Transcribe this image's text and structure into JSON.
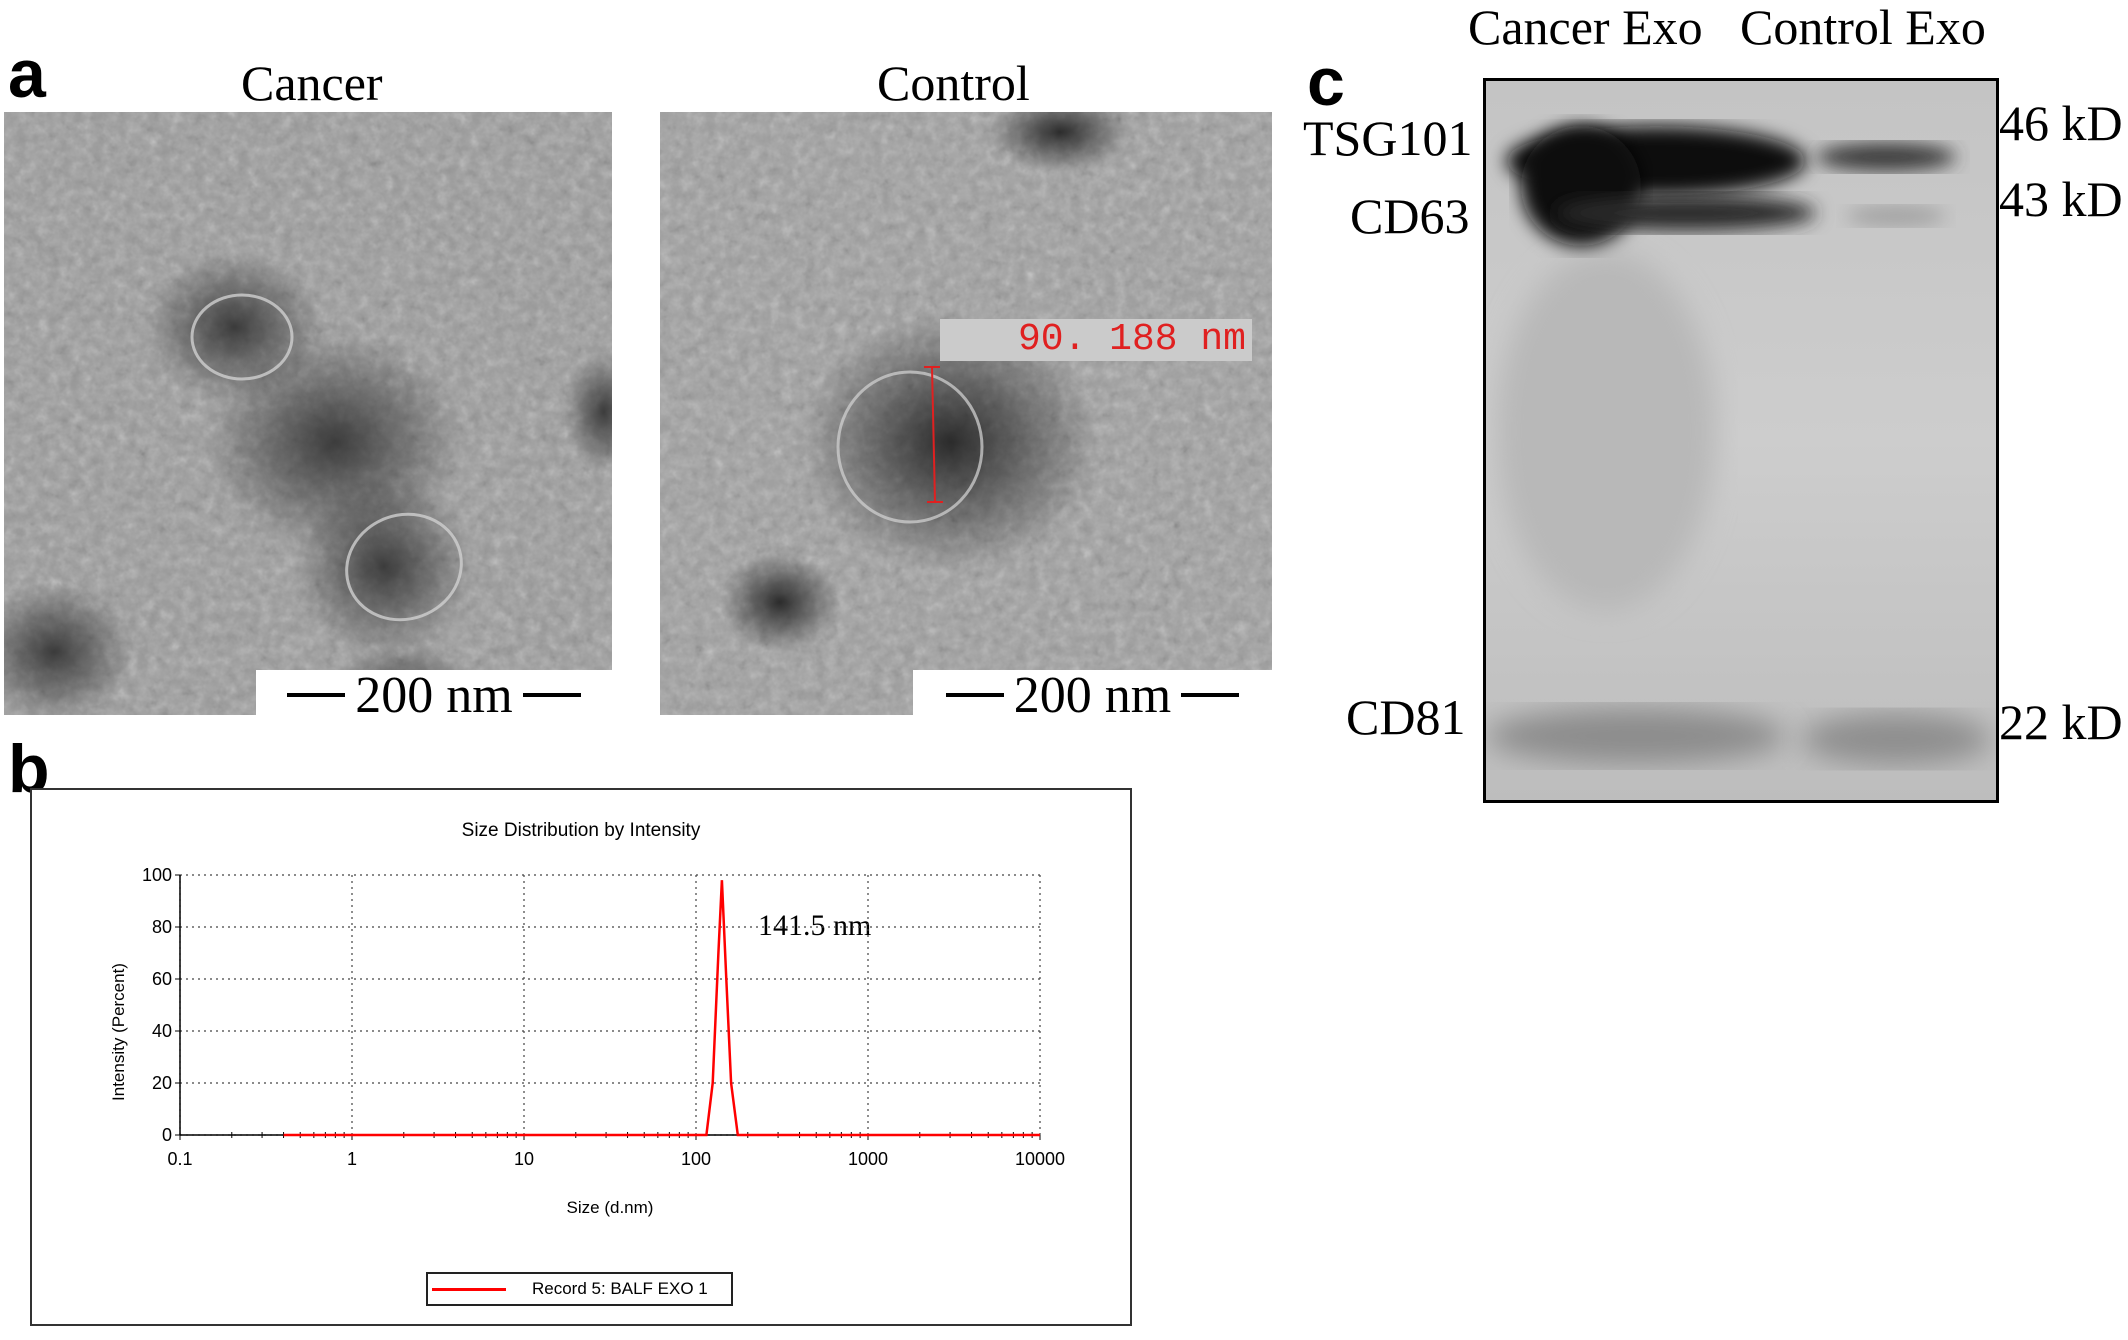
{
  "panel_a": {
    "letter": "a",
    "left": {
      "title": "Cancer",
      "scale_bar": "200 nm"
    },
    "right": {
      "title": "Control",
      "scale_bar": "200 nm",
      "measurement": "90. 188 nm"
    }
  },
  "panel_b": {
    "letter": "b",
    "chart_data": {
      "type": "line",
      "title": "Size Distribution by Intensity",
      "xlabel": "Size (d.nm)",
      "ylabel": "Intensity (Percent)",
      "x_scale": "log",
      "xlim": [
        0.1,
        10000
      ],
      "ylim": [
        0,
        100
      ],
      "x_ticks": [
        "0.1",
        "1",
        "10",
        "100",
        "1000",
        "10000"
      ],
      "y_ticks": [
        "0",
        "20",
        "40",
        "60",
        "80",
        "100"
      ],
      "grid": true,
      "legend_position": "bottom",
      "annotation": "141.5 nm",
      "series": [
        {
          "name": "Record 5: BALF EXO 1",
          "color": "#ff0000",
          "x": [
            0.4,
            100,
            115,
            125,
            135,
            141.5,
            150,
            160,
            175,
            200,
            10000
          ],
          "y": [
            0,
            0,
            0,
            20,
            70,
            98,
            60,
            20,
            0,
            0,
            0
          ]
        }
      ]
    }
  },
  "panel_c": {
    "letter": "c",
    "lanes": [
      "Cancer Exo",
      "Control Exo"
    ],
    "bands": [
      "TSG101",
      "CD63",
      "CD81"
    ],
    "markers": [
      "46 kD",
      "43 kD",
      "22 kD"
    ]
  }
}
